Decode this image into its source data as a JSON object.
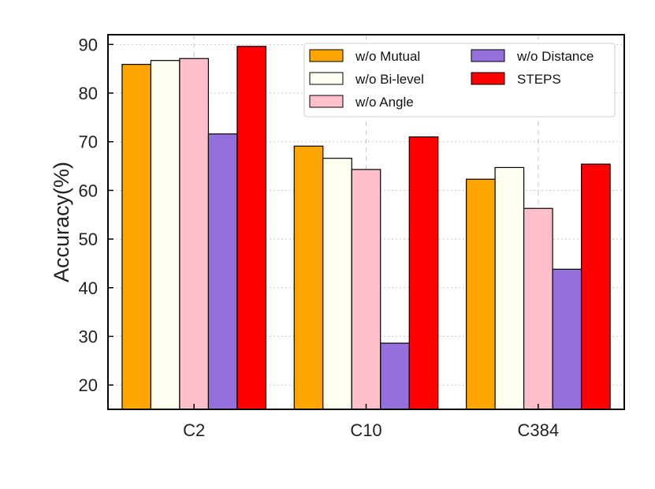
{
  "chart_data": {
    "type": "bar",
    "title": "",
    "xlabel": "",
    "ylabel": "Accuracy(%)",
    "ylim": [
      15,
      92
    ],
    "yticks": [
      20,
      30,
      40,
      50,
      60,
      70,
      80,
      90
    ],
    "grid": true,
    "legend_position": "top-right",
    "categories": [
      "C2",
      "C10",
      "C384"
    ],
    "series": [
      {
        "name": "w/o Mutual",
        "color": "#FFA500",
        "values": [
          85.9,
          69.1,
          62.3
        ]
      },
      {
        "name": "w/o Bi-level",
        "color": "#FFFFF0",
        "values": [
          86.7,
          66.6,
          64.7
        ]
      },
      {
        "name": "w/o Angle",
        "color": "#FFC0CB",
        "values": [
          87.1,
          64.3,
          56.3
        ]
      },
      {
        "name": "w/o Distance",
        "color": "#9370DB",
        "values": [
          71.6,
          28.6,
          43.8
        ]
      },
      {
        "name": "STEPS",
        "color": "#FF0000",
        "values": [
          89.6,
          71.0,
          65.4
        ]
      }
    ]
  }
}
